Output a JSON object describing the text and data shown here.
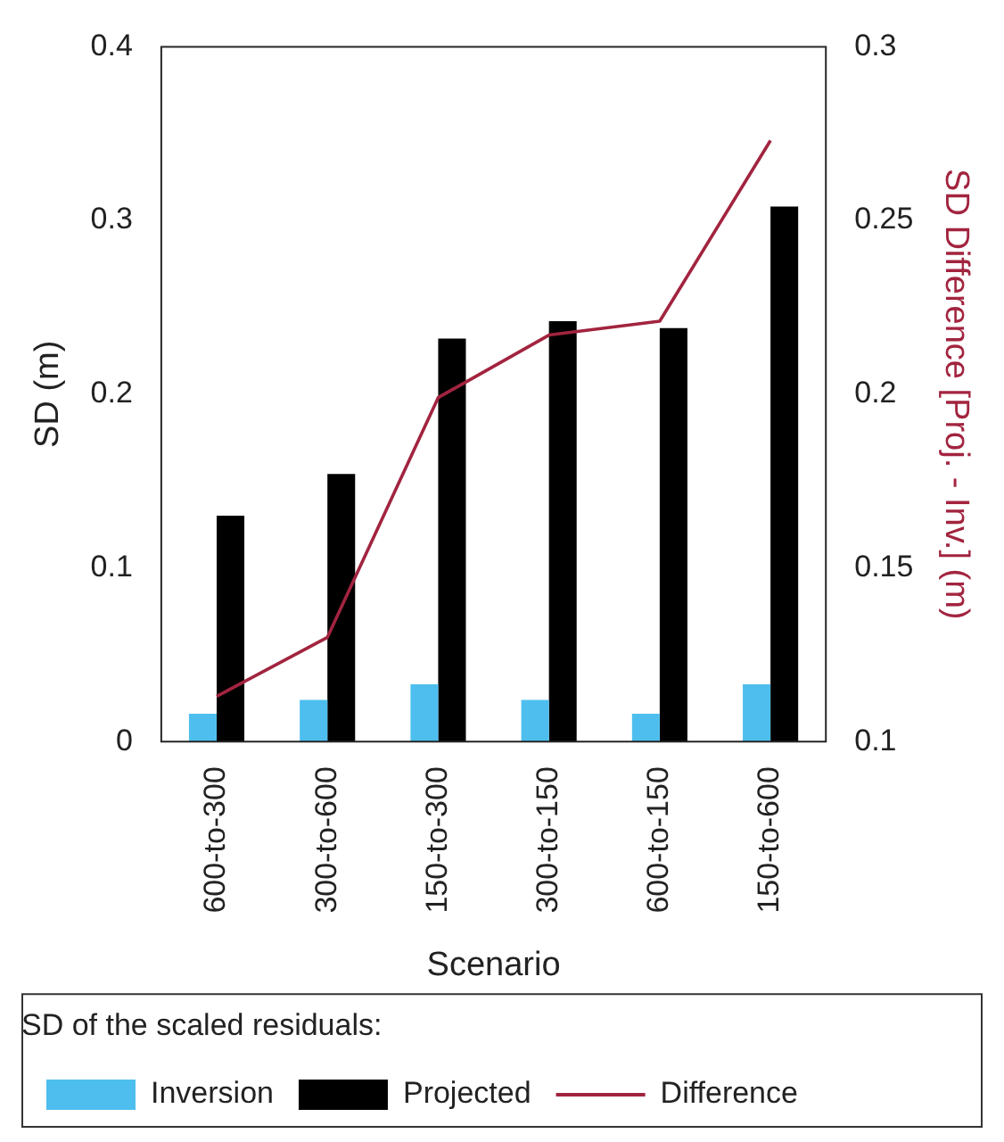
{
  "chart_data": {
    "type": "bar",
    "xlabel": "Scenario",
    "ylabel": "SD (m)",
    "y2label": "SD Difference [Proj. - Inv.] (m)",
    "legend_title": "SD of the scaled residuals:",
    "categories": [
      "600-to-300",
      "300-to-600",
      "150-to-300",
      "300-to-150",
      "600-to-150",
      "150-to-600"
    ],
    "series": [
      {
        "name": "Inversion",
        "color": "#4dbeee",
        "values": [
          0.016,
          0.024,
          0.033,
          0.024,
          0.016,
          0.033
        ]
      },
      {
        "name": "Projected",
        "color": "#000000",
        "values": [
          0.13,
          0.154,
          0.232,
          0.242,
          0.238,
          0.308
        ]
      },
      {
        "name": "Difference",
        "type": "line",
        "axis": "y2",
        "color": "#a2243f",
        "values": [
          0.113,
          0.13,
          0.199,
          0.217,
          0.221,
          0.273
        ]
      }
    ],
    "ylim": [
      0,
      0.4
    ],
    "yticks": [
      0,
      0.1,
      0.2,
      0.3,
      0.4
    ],
    "y2lim": [
      0.1,
      0.3
    ],
    "y2ticks": [
      0.1,
      0.15,
      0.2,
      0.25,
      0.3
    ],
    "legend": "bottom",
    "grid": false,
    "marker": "none",
    "line_style": "solid"
  }
}
